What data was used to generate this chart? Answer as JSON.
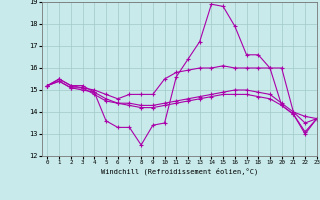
{
  "xlabel": "Windchill (Refroidissement éolien,°C)",
  "xlim": [
    -0.5,
    23
  ],
  "ylim": [
    12,
    19
  ],
  "yticks": [
    12,
    13,
    14,
    15,
    16,
    17,
    18,
    19
  ],
  "xticks": [
    0,
    1,
    2,
    3,
    4,
    5,
    6,
    7,
    8,
    9,
    10,
    11,
    12,
    13,
    14,
    15,
    16,
    17,
    18,
    19,
    20,
    21,
    22,
    23
  ],
  "background_color": "#c8eaea",
  "grid_color": "#a0c8c8",
  "line_color": "#aa00aa",
  "lines": [
    [
      15.2,
      15.5,
      15.2,
      15.2,
      14.9,
      13.6,
      13.3,
      13.3,
      12.5,
      13.4,
      13.5,
      15.6,
      16.4,
      17.2,
      18.9,
      18.8,
      17.9,
      16.6,
      16.6,
      16.0,
      14.3,
      13.9,
      13.0,
      13.7
    ],
    [
      15.2,
      15.5,
      15.2,
      15.1,
      15.0,
      14.8,
      14.6,
      14.8,
      14.8,
      14.8,
      15.5,
      15.8,
      15.9,
      16.0,
      16.0,
      16.1,
      16.0,
      16.0,
      16.0,
      16.0,
      16.0,
      14.0,
      13.8,
      13.7
    ],
    [
      15.2,
      15.4,
      15.1,
      15.1,
      14.8,
      14.5,
      14.4,
      14.4,
      14.3,
      14.3,
      14.4,
      14.5,
      14.6,
      14.7,
      14.8,
      14.9,
      15.0,
      15.0,
      14.9,
      14.8,
      14.4,
      14.0,
      13.5,
      13.7
    ],
    [
      15.2,
      15.4,
      15.1,
      15.0,
      14.9,
      14.6,
      14.4,
      14.3,
      14.2,
      14.2,
      14.3,
      14.4,
      14.5,
      14.6,
      14.7,
      14.8,
      14.8,
      14.8,
      14.7,
      14.6,
      14.3,
      13.9,
      13.1,
      13.7
    ]
  ]
}
